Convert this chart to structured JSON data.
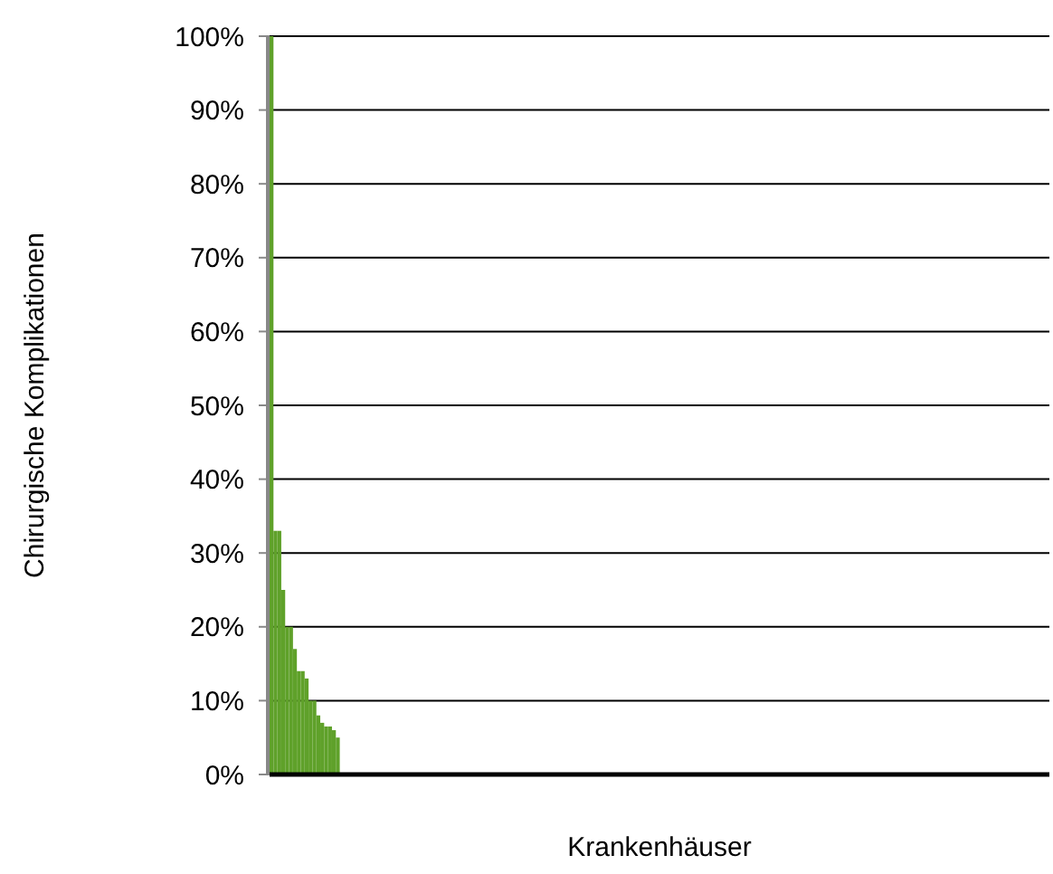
{
  "chart_data": {
    "type": "bar",
    "xlabel": "Krankenhäuser",
    "ylabel": "Chirurgische Komplikationen",
    "color": "#5fa12a",
    "grid": "y",
    "tick_labels": "y",
    "ylim": [
      0,
      100
    ],
    "yticks": [
      {
        "value": 0,
        "label": "0%"
      },
      {
        "value": 10,
        "label": "10%"
      },
      {
        "value": 20,
        "label": "20%"
      },
      {
        "value": 30,
        "label": "30%"
      },
      {
        "value": 40,
        "label": "40%"
      },
      {
        "value": 50,
        "label": "50%"
      },
      {
        "value": 60,
        "label": "60%"
      },
      {
        "value": 70,
        "label": "70%"
      },
      {
        "value": 80,
        "label": "80%"
      },
      {
        "value": 90,
        "label": "90%"
      },
      {
        "value": 100,
        "label": "100%"
      }
    ],
    "categories": [
      null,
      null,
      null,
      null,
      null,
      null,
      null,
      null,
      null,
      null,
      null,
      null,
      null,
      null,
      null,
      null,
      null,
      null,
      null,
      null,
      null,
      null,
      null,
      null,
      null,
      null,
      null,
      null,
      null,
      null,
      null,
      null,
      null,
      null,
      null,
      null,
      null,
      null,
      null,
      null,
      null,
      null,
      null,
      null,
      null,
      null,
      null,
      null,
      null,
      null,
      null,
      null,
      null,
      null,
      null,
      null,
      null,
      null,
      null,
      null,
      null,
      null,
      null,
      null,
      null,
      null,
      null,
      null,
      null,
      null,
      null,
      null,
      null,
      null,
      null,
      null,
      null,
      null,
      null,
      null,
      null,
      null,
      null,
      null,
      null,
      null,
      null,
      null,
      null,
      null,
      null,
      null,
      null,
      null,
      null,
      null,
      null,
      null,
      null,
      null,
      null,
      null,
      null,
      null,
      null,
      null,
      null,
      null,
      null,
      null,
      null,
      null,
      null,
      null,
      null,
      null,
      null,
      null,
      null,
      null,
      null,
      null,
      null,
      null,
      null,
      null,
      null,
      null,
      null,
      null,
      null,
      null,
      null,
      null,
      null,
      null,
      null,
      null,
      null,
      null,
      null,
      null,
      null,
      null,
      null,
      null,
      null,
      null,
      null,
      null,
      null,
      null,
      null,
      null,
      null,
      null,
      null,
      null,
      null,
      null,
      null,
      null,
      null,
      null,
      null,
      null,
      null,
      null,
      null,
      null,
      null,
      null,
      null,
      null,
      null,
      null,
      null,
      null,
      null,
      null,
      null,
      null,
      null,
      null,
      null,
      null,
      null,
      null,
      null,
      null,
      null,
      null,
      null,
      null,
      null,
      null,
      null,
      null,
      null,
      null
    ],
    "values": [
      100,
      33,
      33,
      25,
      20,
      20,
      17,
      14,
      14,
      13,
      10,
      10,
      8,
      7,
      6.5,
      6.5,
      6,
      5,
      0,
      0,
      0,
      0,
      0,
      0,
      0,
      0,
      0,
      0,
      0,
      0,
      0,
      0,
      0,
      0,
      0,
      0,
      0,
      0,
      0,
      0,
      0,
      0,
      0,
      0,
      0,
      0,
      0,
      0,
      0,
      0,
      0,
      0,
      0,
      0,
      0,
      0,
      0,
      0,
      0,
      0,
      0,
      0,
      0,
      0,
      0,
      0,
      0,
      0,
      0,
      0,
      0,
      0,
      0,
      0,
      0,
      0,
      0,
      0,
      0,
      0,
      0,
      0,
      0,
      0,
      0,
      0,
      0,
      0,
      0,
      0,
      0,
      0,
      0,
      0,
      0,
      0,
      0,
      0,
      0,
      0,
      0,
      0,
      0,
      0,
      0,
      0,
      0,
      0,
      0,
      0,
      0,
      0,
      0,
      0,
      0,
      0,
      0,
      0,
      0,
      0,
      0,
      0,
      0,
      0,
      0,
      0,
      0,
      0,
      0,
      0,
      0,
      0,
      0,
      0,
      0,
      0,
      0,
      0,
      0,
      0,
      0,
      0,
      0,
      0,
      0,
      0,
      0,
      0,
      0,
      0,
      0,
      0,
      0,
      0,
      0,
      0,
      0,
      0,
      0,
      0,
      0,
      0,
      0,
      0,
      0,
      0,
      0,
      0,
      0,
      0,
      0,
      0,
      0,
      0,
      0,
      0,
      0,
      0,
      0,
      0,
      0,
      0,
      0,
      0,
      0,
      0,
      0,
      0,
      0,
      0,
      0,
      0,
      0,
      0,
      0,
      0,
      0,
      0,
      0,
      0
    ]
  }
}
